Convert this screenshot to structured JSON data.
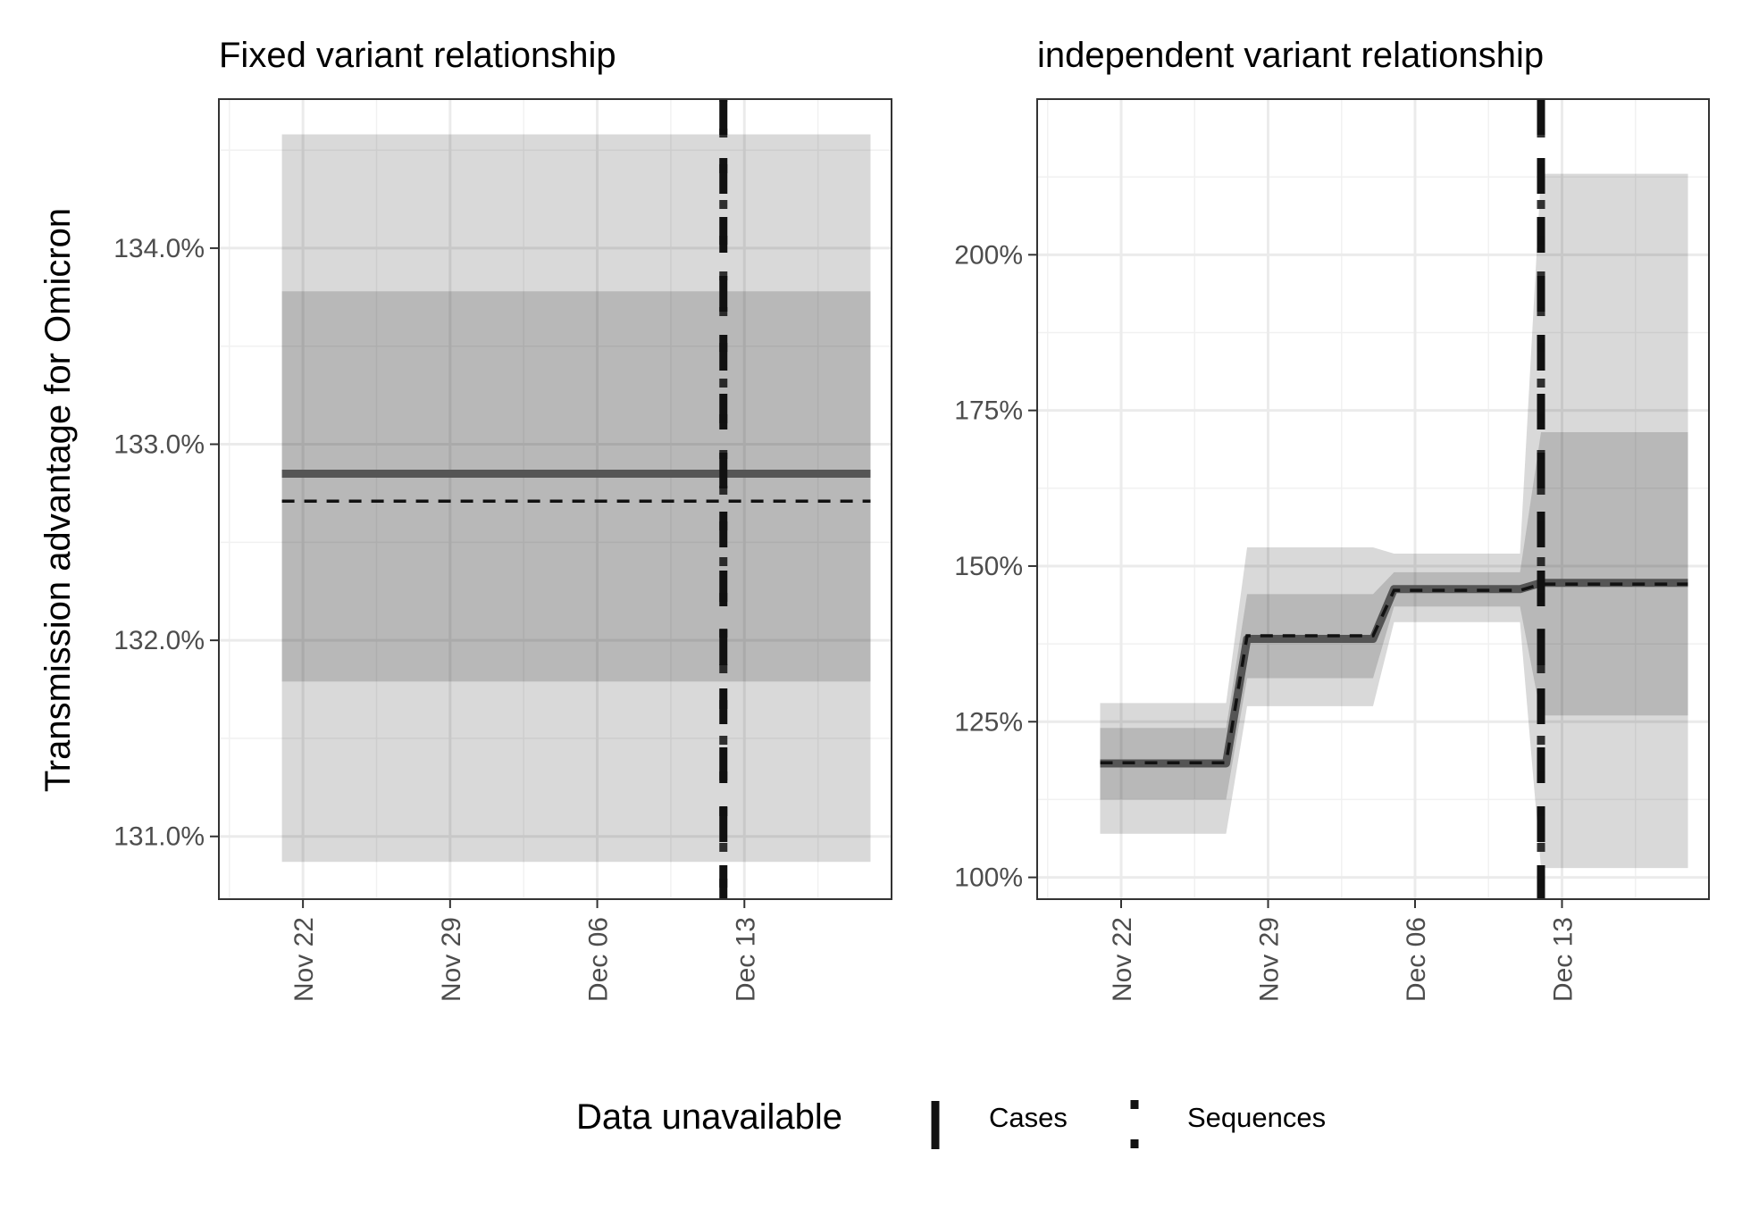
{
  "figure": {
    "ylabel": "Transmission advantage for Omicron",
    "legend": {
      "title": "Data unavailable",
      "items": [
        {
          "label": "Cases",
          "linetype": "solid"
        },
        {
          "label": "Sequences",
          "linetype": "dotted"
        }
      ]
    }
  },
  "chart_data": [
    {
      "type": "line",
      "title": "Fixed variant relationship",
      "x_axis": "date",
      "xlim": [
        "2021-11-18",
        "2021-12-20"
      ],
      "x_ticks": [
        "2021-11-22",
        "2021-11-29",
        "2021-12-06",
        "2021-12-13"
      ],
      "x_tick_labels": [
        "Nov 22",
        "Nov 29",
        "Dec 06",
        "Dec 13"
      ],
      "ylim": [
        130.68,
        134.76
      ],
      "y_ticks": [
        131.0,
        132.0,
        133.0,
        134.0
      ],
      "y_tick_labels": [
        "131.0%",
        "132.0%",
        "133.0%",
        "134.0%"
      ],
      "grid": true,
      "vline": {
        "x": "2021-12-12",
        "legend": "Data unavailable"
      },
      "x": [
        "2021-11-21",
        "2021-12-19"
      ],
      "ribbon_outer": {
        "lower": [
          130.87,
          130.87
        ],
        "upper": [
          134.58,
          134.58
        ]
      },
      "ribbon_inner": {
        "lower": [
          131.79,
          131.79
        ],
        "upper": [
          133.78,
          133.78
        ]
      },
      "series": [
        {
          "name": "",
          "linetype": "solid",
          "values": [
            132.85,
            132.85
          ]
        },
        {
          "name": "",
          "linetype": "dashed",
          "values": [
            132.71,
            132.71
          ]
        }
      ]
    },
    {
      "type": "line",
      "title": "independent variant relationship",
      "x_axis": "date",
      "xlim": [
        "2021-11-18",
        "2021-12-20"
      ],
      "x_ticks": [
        "2021-11-22",
        "2021-11-29",
        "2021-12-06",
        "2021-12-13"
      ],
      "x_tick_labels": [
        "Nov 22",
        "Nov 29",
        "Dec 06",
        "Dec 13"
      ],
      "ylim": [
        96.5,
        225
      ],
      "y_ticks": [
        100,
        125,
        150,
        175,
        200
      ],
      "y_tick_labels": [
        "100%",
        "125%",
        "150%",
        "175%",
        "200%"
      ],
      "grid": true,
      "vline": {
        "x": "2021-12-12",
        "legend": "Data unavailable"
      },
      "x": [
        "2021-11-21",
        "2021-11-27",
        "2021-11-28",
        "2021-12-04",
        "2021-12-05",
        "2021-12-11",
        "2021-12-12",
        "2021-12-19"
      ],
      "ribbon_outer": {
        "lower": [
          107,
          107,
          127.5,
          127.5,
          141,
          141,
          101.5,
          101.5
        ],
        "upper": [
          128,
          128,
          153,
          153,
          152,
          152,
          213,
          213
        ]
      },
      "ribbon_inner": {
        "lower": [
          112.5,
          112.5,
          132,
          132,
          143.5,
          143.5,
          126,
          126
        ],
        "upper": [
          124,
          124,
          145.5,
          145.5,
          149,
          149,
          171.5,
          171.5
        ]
      },
      "series": [
        {
          "name": "",
          "linetype": "solid",
          "values": [
            118.3,
            118.3,
            138.3,
            138.3,
            146.3,
            146.3,
            147.3,
            147.3
          ]
        },
        {
          "name": "",
          "linetype": "dashed",
          "values": [
            118.4,
            118.4,
            138.8,
            138.8,
            146.1,
            146.1,
            147.1,
            147.1
          ]
        }
      ]
    }
  ]
}
